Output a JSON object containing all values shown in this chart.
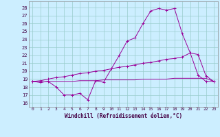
{
  "xlabel": "Windchill (Refroidissement éolien,°C)",
  "bg_color": "#cceeff",
  "grid_color": "#99cccc",
  "line_color": "#990099",
  "x_ticks": [
    0,
    1,
    2,
    3,
    4,
    5,
    6,
    7,
    8,
    9,
    10,
    11,
    12,
    13,
    14,
    15,
    16,
    17,
    18,
    19,
    20,
    21,
    22,
    23
  ],
  "ylim": [
    15.5,
    28.8
  ],
  "xlim": [
    -0.5,
    23.5
  ],
  "yticks": [
    16,
    17,
    18,
    19,
    20,
    21,
    22,
    23,
    24,
    25,
    26,
    27,
    28
  ],
  "series1_x": [
    0,
    1,
    2,
    3,
    4,
    5,
    6,
    7,
    8,
    9,
    10,
    11,
    12,
    13,
    14,
    15,
    16,
    17,
    18,
    19,
    20,
    21,
    22,
    23
  ],
  "series1_y": [
    18.7,
    18.6,
    18.7,
    18.0,
    17.0,
    17.0,
    17.2,
    16.4,
    18.8,
    18.6,
    20.3,
    22.0,
    23.8,
    24.2,
    26.0,
    27.6,
    27.9,
    27.7,
    27.9,
    24.7,
    22.3,
    19.5,
    18.7,
    18.7
  ],
  "series2_x": [
    0,
    1,
    2,
    3,
    4,
    5,
    6,
    7,
    8,
    9,
    10,
    11,
    12,
    13,
    14,
    15,
    16,
    17,
    18,
    19,
    20,
    21,
    22,
    23
  ],
  "series2_y": [
    18.7,
    18.8,
    19.0,
    19.2,
    19.3,
    19.5,
    19.7,
    19.8,
    20.0,
    20.1,
    20.3,
    20.5,
    20.6,
    20.8,
    21.0,
    21.1,
    21.3,
    21.5,
    21.6,
    21.8,
    22.3,
    22.1,
    19.4,
    18.7
  ],
  "series3_x": [
    0,
    1,
    2,
    3,
    4,
    5,
    6,
    7,
    8,
    9,
    10,
    11,
    12,
    13,
    14,
    15,
    16,
    17,
    18,
    19,
    20,
    21,
    22,
    23
  ],
  "series3_y": [
    18.7,
    18.6,
    18.7,
    18.7,
    18.7,
    18.7,
    18.8,
    18.8,
    18.8,
    18.9,
    18.9,
    18.9,
    18.9,
    18.9,
    19.0,
    19.0,
    19.0,
    19.0,
    19.1,
    19.1,
    19.1,
    19.1,
    19.1,
    18.7
  ]
}
